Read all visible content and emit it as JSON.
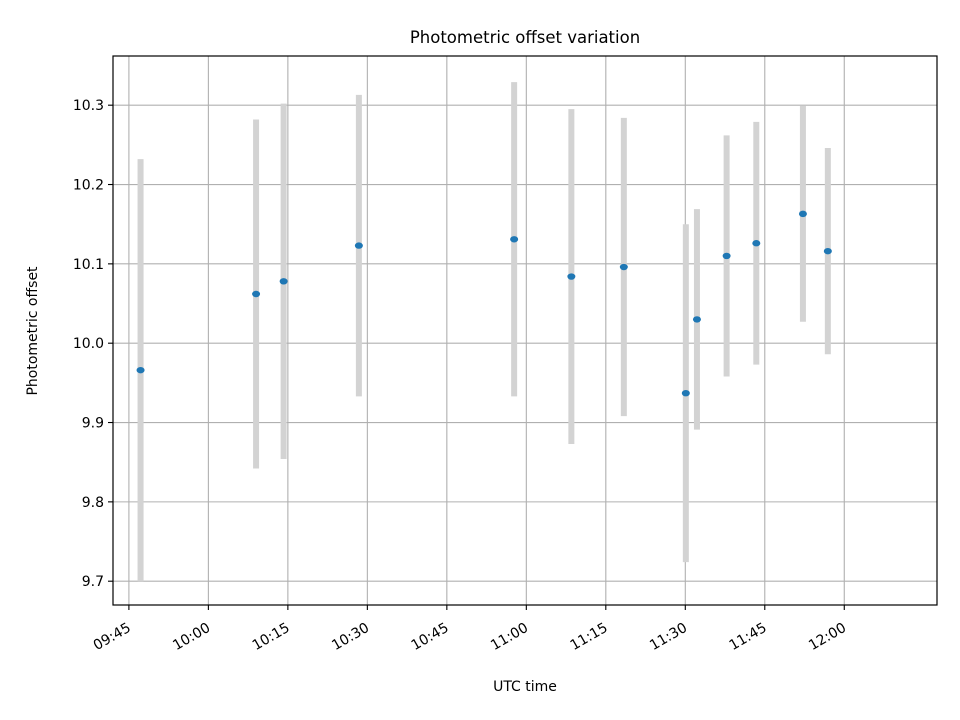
{
  "chart_data": {
    "type": "scatter",
    "title": "Photometric offset variation",
    "xlabel": "UTC time",
    "ylabel": "Photometric offset",
    "grid": true,
    "xlim_minutes": [
      582,
      737.5
    ],
    "ylim": [
      9.67,
      10.362
    ],
    "x_ticks": [
      {
        "minutes": 585,
        "label": "09:45"
      },
      {
        "minutes": 600,
        "label": "10:00"
      },
      {
        "minutes": 615,
        "label": "10:15"
      },
      {
        "minutes": 630,
        "label": "10:30"
      },
      {
        "minutes": 645,
        "label": "10:45"
      },
      {
        "minutes": 660,
        "label": "11:00"
      },
      {
        "minutes": 675,
        "label": "11:15"
      },
      {
        "minutes": 690,
        "label": "11:30"
      },
      {
        "minutes": 705,
        "label": "11:45"
      },
      {
        "minutes": 720,
        "label": "12:00"
      }
    ],
    "y_ticks": [
      {
        "value": 9.7,
        "label": "9.7"
      },
      {
        "value": 9.8,
        "label": "9.8"
      },
      {
        "value": 9.9,
        "label": "9.9"
      },
      {
        "value": 10.0,
        "label": "10.0"
      },
      {
        "value": 10.1,
        "label": "10.1"
      },
      {
        "value": 10.2,
        "label": "10.2"
      },
      {
        "value": 10.3,
        "label": "10.3"
      }
    ],
    "series": [
      {
        "name": "Photometric offset",
        "marker_color": "#1f77b4",
        "errorbar_color": "#d3d3d3",
        "points": [
          {
            "time": "09:47:12",
            "minutes": 587.2,
            "y": 9.966,
            "err": 0.266
          },
          {
            "time": "10:09:00",
            "minutes": 609.0,
            "y": 10.062,
            "err": 0.22
          },
          {
            "time": "10:14:12",
            "minutes": 614.2,
            "y": 10.078,
            "err": 0.224
          },
          {
            "time": "10:28:24",
            "minutes": 628.4,
            "y": 10.123,
            "err": 0.19
          },
          {
            "time": "10:57:42",
            "minutes": 657.7,
            "y": 10.131,
            "err": 0.198
          },
          {
            "time": "11:08:30",
            "minutes": 668.5,
            "y": 10.084,
            "err": 0.211
          },
          {
            "time": "11:18:24",
            "minutes": 678.4,
            "y": 10.096,
            "err": 0.188
          },
          {
            "time": "11:30:06",
            "minutes": 690.1,
            "y": 9.937,
            "err": 0.213
          },
          {
            "time": "11:32:12",
            "minutes": 692.2,
            "y": 10.03,
            "err": 0.139
          },
          {
            "time": "11:37:48",
            "minutes": 697.8,
            "y": 10.11,
            "err": 0.152
          },
          {
            "time": "11:43:24",
            "minutes": 703.4,
            "y": 10.126,
            "err": 0.153
          },
          {
            "time": "11:52:12",
            "minutes": 712.2,
            "y": 10.163,
            "err": 0.136
          },
          {
            "time": "11:56:54",
            "minutes": 716.9,
            "y": 10.116,
            "err": 0.13
          }
        ]
      }
    ]
  }
}
